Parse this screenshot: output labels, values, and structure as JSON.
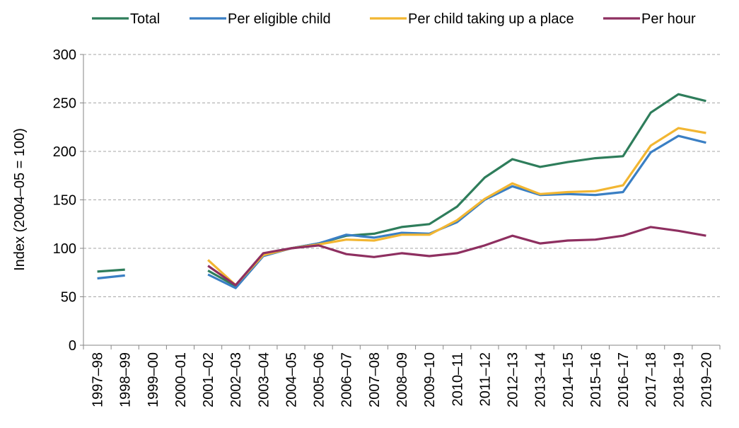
{
  "chart_data": {
    "type": "line",
    "title": "",
    "xlabel": "",
    "ylabel": "Index (2004–05 = 100)",
    "ylim": [
      0,
      300
    ],
    "yticks": [
      0,
      50,
      100,
      150,
      200,
      250,
      300
    ],
    "grid": true,
    "legend_position": "top",
    "categories": [
      "1997–98",
      "1998–99",
      "1999–00",
      "2000–01",
      "2001–02",
      "2002–03",
      "2003–04",
      "2004–05",
      "2005–06",
      "2006–07",
      "2007–08",
      "2008–09",
      "2009–10",
      "2010–11",
      "2011–12",
      "2012–13",
      "2013–14",
      "2014–15",
      "2015–16",
      "2016–17",
      "2017–18",
      "2018–19",
      "2019–20"
    ],
    "series": [
      {
        "name": "Total",
        "color": "#2e7d5b",
        "values": [
          76,
          78,
          null,
          null,
          77,
          61,
          94,
          100,
          105,
          113,
          115,
          122,
          125,
          143,
          173,
          192,
          184,
          189,
          193,
          195,
          240,
          259,
          252
        ]
      },
      {
        "name": "Per eligible child",
        "color": "#3a7fc4",
        "values": [
          69,
          72,
          null,
          null,
          73,
          59,
          92,
          100,
          105,
          114,
          111,
          116,
          115,
          127,
          150,
          164,
          155,
          156,
          155,
          158,
          199,
          216,
          209
        ]
      },
      {
        "name": "Per child taking up a place",
        "color": "#f2b632",
        "values": [
          null,
          null,
          null,
          null,
          88,
          62,
          93,
          100,
          104,
          109,
          108,
          114,
          114,
          129,
          151,
          167,
          156,
          158,
          159,
          165,
          206,
          224,
          219
        ]
      },
      {
        "name": "Per hour",
        "color": "#8e2f60",
        "values": [
          null,
          null,
          null,
          null,
          82,
          62,
          95,
          100,
          103,
          94,
          91,
          95,
          92,
          95,
          103,
          113,
          105,
          108,
          109,
          113,
          122,
          118,
          113
        ]
      }
    ]
  }
}
